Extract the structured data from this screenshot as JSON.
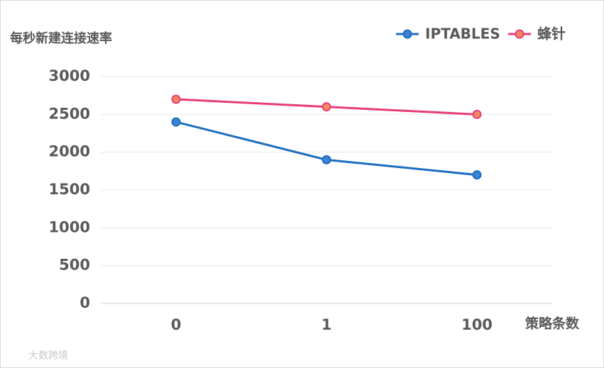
{
  "chart_data": {
    "type": "line",
    "y_axis_title": "每秒新建连接速率",
    "x_axis_title": "策略条数",
    "categories": [
      "0",
      "1",
      "100"
    ],
    "series": [
      {
        "name": "IPTABLES",
        "color": "#1c6dbf",
        "values": [
          2400,
          1900,
          1700
        ]
      },
      {
        "name": "蜂针",
        "color": "#e63b7a",
        "values": [
          2700,
          2600,
          2500
        ]
      }
    ],
    "ylim": [
      0,
      3000
    ],
    "yticks": [
      0,
      500,
      1000,
      1500,
      2000,
      2500,
      3000
    ],
    "grid": true,
    "legend": "top-right",
    "watermark": "大数跨境"
  }
}
